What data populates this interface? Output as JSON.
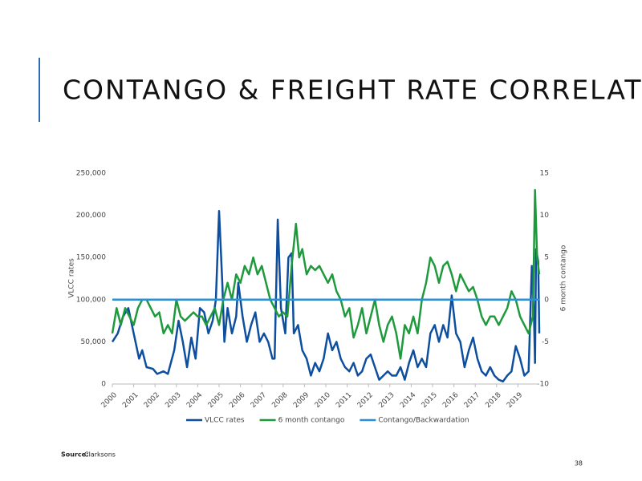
{
  "slide_title": "CONTANGO & FREIGHT RATE CORRELATION",
  "source_label": "Source:",
  "source": "Clarksons",
  "page_number": "38",
  "chart_data": {
    "type": "line",
    "y_label": "VLCC rates",
    "y2_label": "6 month contango",
    "xlim": [
      2000,
      2020
    ],
    "xticks": [
      2000,
      2001,
      2002,
      2003,
      2004,
      2005,
      2006,
      2007,
      2008,
      2009,
      2010,
      2011,
      2012,
      2013,
      2014,
      2015,
      2016,
      2017,
      2018,
      2019
    ],
    "ylim": [
      0,
      250000
    ],
    "yticks": [
      0,
      {
        "value": 50000,
        "label": "50,000"
      },
      {
        "value": 100000,
        "label": "100,000"
      },
      {
        "value": 150000,
        "label": "150,000"
      },
      {
        "value": 200000,
        "label": "200,000"
      },
      {
        "value": 250000,
        "label": "250,000"
      }
    ],
    "y2lim": [
      -10,
      15
    ],
    "y2ticks": [
      -10,
      -5,
      0,
      5,
      10,
      15
    ],
    "legend": "bottom",
    "series": [
      {
        "name": "VLCC rates",
        "color": "#0d4f9e",
        "x": [
          2000.0,
          2000.25,
          2000.5,
          2000.75,
          2001.0,
          2001.25,
          2001.4,
          2001.6,
          2001.9,
          2002.1,
          2002.4,
          2002.6,
          2002.9,
          2003.1,
          2003.3,
          2003.5,
          2003.7,
          2003.9,
          2004.1,
          2004.3,
          2004.5,
          2004.7,
          2004.85,
          2005.0,
          2005.15,
          2005.25,
          2005.4,
          2005.6,
          2005.8,
          2005.9,
          2006.1,
          2006.3,
          2006.5,
          2006.7,
          2006.9,
          2007.1,
          2007.3,
          2007.5,
          2007.6,
          2007.75,
          2007.9,
          2008.1,
          2008.25,
          2008.4,
          2008.5,
          2008.7,
          2008.9,
          2009.1,
          2009.3,
          2009.5,
          2009.7,
          2009.9,
          2010.1,
          2010.3,
          2010.5,
          2010.7,
          2010.9,
          2011.1,
          2011.3,
          2011.5,
          2011.7,
          2011.9,
          2012.1,
          2012.3,
          2012.5,
          2012.7,
          2012.9,
          2013.1,
          2013.3,
          2013.5,
          2013.7,
          2013.9,
          2014.1,
          2014.3,
          2014.5,
          2014.7,
          2014.9,
          2015.1,
          2015.3,
          2015.5,
          2015.7,
          2015.9,
          2016.1,
          2016.3,
          2016.5,
          2016.7,
          2016.9,
          2017.1,
          2017.3,
          2017.5,
          2017.7,
          2017.9,
          2018.1,
          2018.3,
          2018.5,
          2018.7,
          2018.9,
          2019.1,
          2019.3,
          2019.5,
          2019.65,
          2019.75,
          2019.8,
          2019.85,
          2019.95,
          2020.0
        ],
        "values": [
          50000,
          60000,
          80000,
          90000,
          60000,
          30000,
          40000,
          20000,
          18000,
          12000,
          15000,
          12000,
          40000,
          75000,
          50000,
          20000,
          55000,
          30000,
          90000,
          85000,
          60000,
          75000,
          100000,
          205000,
          120000,
          50000,
          90000,
          60000,
          80000,
          120000,
          80000,
          50000,
          70000,
          85000,
          50000,
          60000,
          50000,
          30000,
          30000,
          195000,
          90000,
          60000,
          150000,
          155000,
          60000,
          70000,
          40000,
          30000,
          10000,
          25000,
          15000,
          30000,
          60000,
          40000,
          50000,
          30000,
          20000,
          15000,
          25000,
          10000,
          15000,
          30000,
          35000,
          20000,
          5000,
          10000,
          15000,
          10000,
          10000,
          20000,
          5000,
          25000,
          40000,
          20000,
          30000,
          20000,
          60000,
          70000,
          50000,
          70000,
          55000,
          105000,
          60000,
          50000,
          20000,
          40000,
          55000,
          30000,
          15000,
          10000,
          20000,
          10000,
          5000,
          3000,
          10000,
          15000,
          45000,
          30000,
          10000,
          15000,
          140000,
          80000,
          25000,
          160000,
          145000,
          60000
        ]
      },
      {
        "name": "6 month contango",
        "color": "#1e9a3c",
        "axis": "y2",
        "x": [
          2000.0,
          2000.2,
          2000.4,
          2000.6,
          2000.8,
          2001.0,
          2001.2,
          2001.4,
          2001.6,
          2001.8,
          2002.0,
          2002.2,
          2002.4,
          2002.6,
          2002.8,
          2003.0,
          2003.2,
          2003.4,
          2003.6,
          2003.8,
          2004.0,
          2004.2,
          2004.4,
          2004.6,
          2004.8,
          2005.0,
          2005.2,
          2005.4,
          2005.6,
          2005.8,
          2006.0,
          2006.2,
          2006.4,
          2006.6,
          2006.8,
          2007.0,
          2007.2,
          2007.4,
          2007.6,
          2007.8,
          2008.0,
          2008.2,
          2008.4,
          2008.6,
          2008.75,
          2008.9,
          2009.1,
          2009.3,
          2009.5,
          2009.7,
          2009.9,
          2010.1,
          2010.3,
          2010.5,
          2010.7,
          2010.9,
          2011.1,
          2011.3,
          2011.5,
          2011.7,
          2011.9,
          2012.1,
          2012.3,
          2012.5,
          2012.7,
          2012.9,
          2013.1,
          2013.3,
          2013.5,
          2013.7,
          2013.9,
          2014.1,
          2014.3,
          2014.5,
          2014.7,
          2014.9,
          2015.1,
          2015.3,
          2015.5,
          2015.7,
          2015.9,
          2016.1,
          2016.3,
          2016.5,
          2016.7,
          2016.9,
          2017.1,
          2017.3,
          2017.5,
          2017.7,
          2017.9,
          2018.1,
          2018.3,
          2018.5,
          2018.7,
          2018.9,
          2019.1,
          2019.3,
          2019.5,
          2019.7,
          2019.8,
          2019.9,
          2020.0
        ],
        "values": [
          -4,
          -1,
          -3,
          -1,
          -2,
          -3,
          -1,
          0,
          0,
          -1,
          -2,
          -1.5,
          -4,
          -3,
          -4,
          0,
          -2,
          -2.5,
          -2,
          -1.5,
          -2,
          -2,
          -3,
          -2,
          -1,
          -3,
          0,
          2,
          0,
          3,
          2,
          4,
          3,
          5,
          3,
          4,
          2,
          0,
          -1,
          -2,
          -1.5,
          -2,
          4,
          9,
          5,
          6,
          3,
          4,
          3.5,
          4,
          3,
          2,
          3,
          1,
          0,
          -2,
          -1,
          -4.5,
          -3,
          -1,
          -4,
          -2,
          0,
          -3,
          -5,
          -3,
          -2,
          -4,
          -7,
          -3,
          -4,
          -2,
          -4,
          0,
          2,
          5,
          4,
          2,
          4,
          4.5,
          3,
          1,
          3,
          2,
          1,
          1.5,
          0,
          -2,
          -3,
          -2,
          -2,
          -3,
          -2,
          -1,
          1,
          0,
          -2,
          -3,
          -4,
          -2,
          13,
          5,
          3
        ]
      },
      {
        "name": "Contango/Backwardation",
        "color": "#2a8fd6",
        "axis": "y2",
        "x": [
          2000,
          2020
        ],
        "values": [
          0,
          0
        ]
      }
    ]
  }
}
